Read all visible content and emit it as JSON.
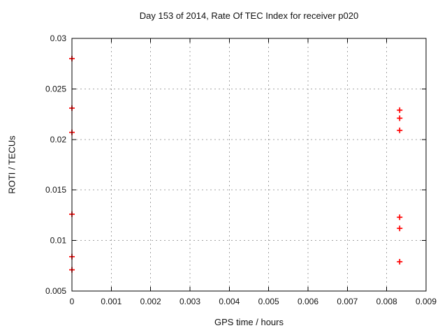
{
  "chart_data": {
    "type": "scatter",
    "title": "Day 153 of 2014, Rate Of TEC Index for receiver p020",
    "xlabel": "GPS time / hours",
    "ylabel": "ROTI / TECUs",
    "xlim": [
      0,
      0.009
    ],
    "ylim": [
      0.005,
      0.03
    ],
    "xticks": [
      0,
      0.001,
      0.002,
      0.003,
      0.004,
      0.005,
      0.006,
      0.007,
      0.008,
      0.009
    ],
    "xtick_labels": [
      "0",
      "0.001",
      "0.002",
      "0.003",
      "0.004",
      "0.005",
      "0.006",
      "0.007",
      "0.008",
      "0.009"
    ],
    "yticks": [
      0.005,
      0.01,
      0.015,
      0.02,
      0.025,
      0.03
    ],
    "ytick_labels": [
      "0.005",
      "0.01",
      "0.015",
      "0.02",
      "0.025",
      "0.03"
    ],
    "grid": true,
    "legend_position": "none",
    "marker": "plus",
    "colors": {
      "marker": "#ff0000",
      "grid": "#a3a3a3",
      "axis": "#000000",
      "background": "#ffffff",
      "text": "#111111"
    },
    "series": [
      {
        "name": "ROTI",
        "points": [
          [
            0,
            0.028
          ],
          [
            0,
            0.0231
          ],
          [
            0,
            0.0207
          ],
          [
            0,
            0.0126
          ],
          [
            0,
            0.0084
          ],
          [
            0,
            0.0071
          ],
          [
            0.00833,
            0.0229
          ],
          [
            0.00833,
            0.0221
          ],
          [
            0.00833,
            0.0209
          ],
          [
            0.00833,
            0.0123
          ],
          [
            0.00833,
            0.0112
          ],
          [
            0.00833,
            0.0079
          ]
        ]
      }
    ]
  }
}
